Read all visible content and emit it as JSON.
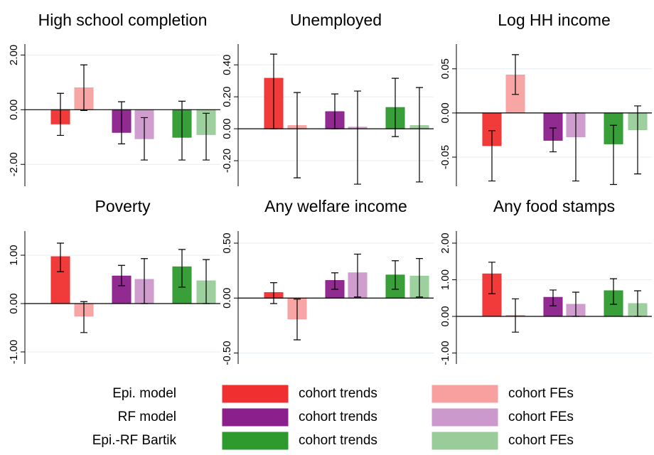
{
  "chart_data": [
    {
      "type": "bar",
      "title": "High school completion",
      "values": [
        -0.52,
        0.8,
        -0.83,
        -1.06,
        -1.01,
        -0.91
      ],
      "ci_low": [
        -0.94,
        -0.03,
        -1.25,
        -1.84,
        -1.84,
        -1.84
      ],
      "ci_high": [
        0.6,
        1.64,
        0.29,
        -0.29,
        0.31,
        -0.13
      ],
      "ylim": [
        -2.8,
        2.4
      ],
      "yticks": [
        {
          "value": -2,
          "label": "-2.00"
        },
        {
          "value": 0,
          "label": "0.00"
        },
        {
          "value": 2,
          "label": "2.00"
        }
      ]
    },
    {
      "type": "bar",
      "title": "Unemployed",
      "values": [
        0.316,
        0.02,
        0.107,
        0.01,
        0.133,
        0.02
      ],
      "ci_low": [
        0.0,
        -0.307,
        0.0,
        -0.347,
        -0.049,
        -0.333
      ],
      "ci_high": [
        0.467,
        0.227,
        0.218,
        0.236,
        0.316,
        0.258
      ],
      "ylim": [
        -0.36,
        0.53
      ],
      "yticks": [
        {
          "value": -0.2,
          "label": "-0.20"
        },
        {
          "value": 0,
          "label": "0.00"
        },
        {
          "value": 0.2,
          "label": "0.20"
        },
        {
          "value": 0.4,
          "label": "0.40"
        }
      ]
    },
    {
      "type": "bar",
      "title": "Log HH income",
      "values": [
        -0.037,
        0.043,
        -0.031,
        -0.027,
        -0.035,
        -0.019
      ],
      "ci_low": [
        -0.077,
        0.021,
        -0.044,
        -0.077,
        -0.081,
        -0.069
      ],
      "ci_high": [
        -0.02,
        0.066,
        -0.017,
        0.0,
        -0.014,
        0.008
      ],
      "ylim": [
        -0.083,
        0.078
      ],
      "yticks": [
        {
          "value": -0.05,
          "label": "-0.05"
        },
        {
          "value": 0,
          "label": "0.00"
        },
        {
          "value": 0.05,
          "label": "0.05"
        }
      ]
    },
    {
      "type": "bar",
      "title": "Poverty",
      "values": [
        0.97,
        -0.26,
        0.57,
        0.5,
        0.76,
        0.47
      ],
      "ci_low": [
        0.66,
        -0.6,
        0.37,
        0.0,
        0.34,
        0.0
      ],
      "ci_high": [
        1.25,
        0.04,
        0.79,
        0.93,
        1.12,
        0.91
      ],
      "ylim": [
        -1.25,
        1.5
      ],
      "yticks": [
        {
          "value": -1,
          "label": "-1.00"
        },
        {
          "value": 0,
          "label": "0.00"
        },
        {
          "value": 1,
          "label": "1.00"
        }
      ]
    },
    {
      "type": "bar",
      "title": "Any welfare income",
      "values": [
        0.05,
        -0.19,
        0.16,
        0.23,
        0.21,
        0.2
      ],
      "ci_low": [
        -0.05,
        -0.38,
        0.08,
        0.01,
        0.08,
        0.01
      ],
      "ci_high": [
        0.14,
        -0.01,
        0.23,
        0.4,
        0.34,
        0.36
      ],
      "ylim": [
        -0.6,
        0.61
      ],
      "yticks": [
        {
          "value": -0.5,
          "label": "-0.50"
        },
        {
          "value": 0,
          "label": "0.00"
        },
        {
          "value": 0.5,
          "label": "0.50"
        }
      ]
    },
    {
      "type": "bar",
      "title": "Any food stamps",
      "values": [
        1.16,
        0.03,
        0.52,
        0.33,
        0.7,
        0.35
      ],
      "ci_low": [
        0.62,
        -0.43,
        0.29,
        0.0,
        0.33,
        0.0
      ],
      "ci_high": [
        1.48,
        0.48,
        0.72,
        0.66,
        1.03,
        0.7
      ],
      "ylim": [
        -1.3,
        2.33
      ],
      "yticks": [
        {
          "value": -1,
          "label": "-1.00"
        },
        {
          "value": 0,
          "label": "0.00"
        },
        {
          "value": 1,
          "label": "1.00"
        },
        {
          "value": 2,
          "label": "2.00"
        }
      ]
    }
  ],
  "legend": {
    "groups": [
      {
        "label": "Epi. model",
        "series": [
          {
            "name": "cohort trends",
            "color": "#f03030"
          },
          {
            "name": "cohort FEs",
            "color": "#f8a0a0"
          }
        ]
      },
      {
        "label": "RF model",
        "series": [
          {
            "name": "cohort trends",
            "color": "#8b1f8b"
          },
          {
            "name": "cohort FEs",
            "color": "#cc99cc"
          }
        ]
      },
      {
        "label": "Epi.-RF Bartik",
        "series": [
          {
            "name": "cohort trends",
            "color": "#2e9a2e"
          },
          {
            "name": "cohort FEs",
            "color": "#99cc99"
          }
        ]
      }
    ]
  }
}
